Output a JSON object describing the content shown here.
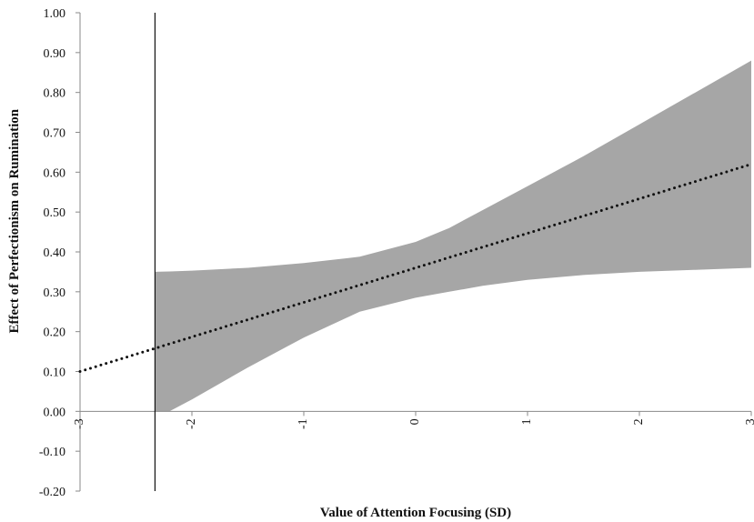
{
  "chart_data": {
    "type": "line",
    "title": "",
    "xlabel": "Value of Attention Focusing (SD)",
    "ylabel": "Effect of Perfectionism on Rumination",
    "xlim": [
      -3,
      3
    ],
    "ylim": [
      -0.2,
      1.0
    ],
    "x_ticks": [
      "-3",
      "-2",
      "-1",
      "0",
      "1",
      "2",
      "3"
    ],
    "y_ticks": [
      "1.00",
      "0.90",
      "0.80",
      "0.70",
      "0.60",
      "0.50",
      "0.40",
      "0.30",
      "0.20",
      "0.10",
      "0.00",
      "-0.10",
      "-0.20"
    ],
    "effect_line": {
      "style": "dotted",
      "color": "#111111",
      "x": [
        -3,
        3
      ],
      "y": [
        0.1,
        0.62
      ]
    },
    "confidence_band": {
      "color": "#a6a6a6",
      "x": [
        -2.33,
        -2.2,
        -2.0,
        -1.5,
        -1.0,
        -0.5,
        0.0,
        0.3,
        0.6,
        1.0,
        1.5,
        2.0,
        2.5,
        3.0
      ],
      "upper": [
        0.35,
        0.351,
        0.353,
        0.36,
        0.372,
        0.388,
        0.425,
        0.46,
        0.505,
        0.565,
        0.64,
        0.72,
        0.8,
        0.88
      ],
      "lower": [
        0.0,
        0.0,
        0.03,
        0.11,
        0.185,
        0.25,
        0.285,
        0.3,
        0.315,
        0.33,
        0.342,
        0.35,
        0.355,
        0.36
      ]
    },
    "reference_line": {
      "x": -2.33,
      "color": "#111111"
    },
    "grid": false,
    "legend": "none"
  }
}
